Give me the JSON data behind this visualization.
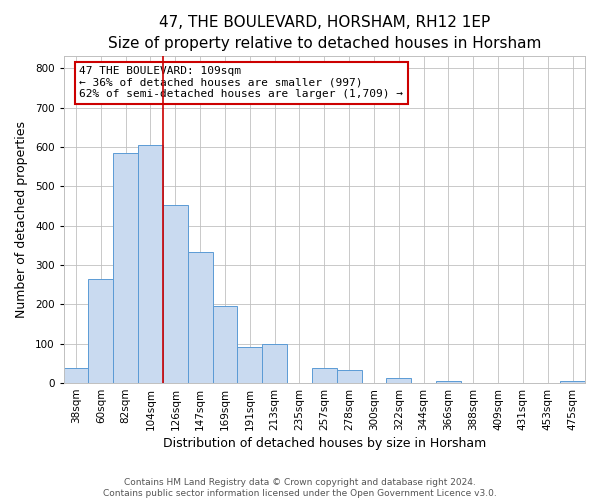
{
  "title": "47, THE BOULEVARD, HORSHAM, RH12 1EP",
  "subtitle": "Size of property relative to detached houses in Horsham",
  "xlabel": "Distribution of detached houses by size in Horsham",
  "ylabel": "Number of detached properties",
  "bar_labels": [
    "38sqm",
    "60sqm",
    "82sqm",
    "104sqm",
    "126sqm",
    "147sqm",
    "169sqm",
    "191sqm",
    "213sqm",
    "235sqm",
    "257sqm",
    "278sqm",
    "300sqm",
    "322sqm",
    "344sqm",
    "366sqm",
    "388sqm",
    "409sqm",
    "431sqm",
    "453sqm",
    "475sqm"
  ],
  "bar_heights": [
    38,
    265,
    585,
    605,
    452,
    332,
    197,
    91,
    100,
    0,
    38,
    32,
    0,
    13,
    0,
    5,
    0,
    0,
    0,
    0,
    5
  ],
  "bar_color": "#c9daf0",
  "bar_edge_color": "#5b9bd5",
  "vline_x_index": 3,
  "vline_color": "#cc0000",
  "annotation_text": "47 THE BOULEVARD: 109sqm\n← 36% of detached houses are smaller (997)\n62% of semi-detached houses are larger (1,709) →",
  "annotation_box_edge": "#cc0000",
  "ylim": [
    0,
    830
  ],
  "yticks": [
    0,
    100,
    200,
    300,
    400,
    500,
    600,
    700,
    800
  ],
  "footer": "Contains HM Land Registry data © Crown copyright and database right 2024.\nContains public sector information licensed under the Open Government Licence v3.0.",
  "grid_color": "#c0c0c0",
  "background_color": "#ffffff",
  "title_fontsize": 11,
  "subtitle_fontsize": 9.5,
  "axis_label_fontsize": 9,
  "tick_fontsize": 7.5,
  "footer_fontsize": 6.5
}
